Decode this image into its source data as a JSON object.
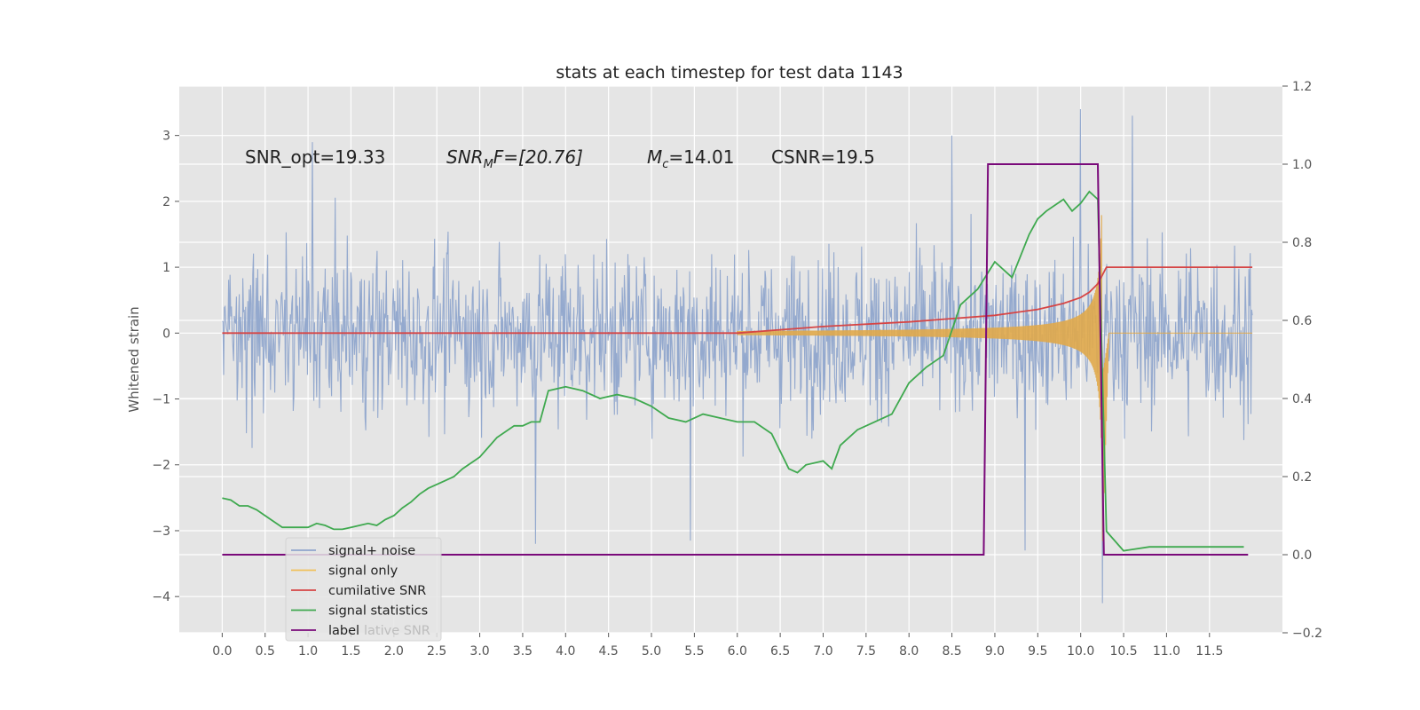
{
  "chart_data": {
    "type": "line",
    "title": "stats at each timestep for test data 1143",
    "ylabel": "Whitened strain",
    "xlabel": "",
    "xlim": [
      -0.5,
      12.35
    ],
    "ylim": [
      -4.55,
      3.75
    ],
    "y2lim": [
      -0.2,
      1.2
    ],
    "grid": true,
    "legend_placement": "lower-left",
    "x_ticks": [
      "0.0",
      "0.5",
      "1.0",
      "1.5",
      "2.0",
      "2.5",
      "3.0",
      "3.5",
      "4.0",
      "4.5",
      "5.0",
      "5.5",
      "6.0",
      "6.5",
      "7.0",
      "7.5",
      "8.0",
      "8.5",
      "9.0",
      "9.5",
      "10.0",
      "10.5",
      "11.0",
      "11.5"
    ],
    "y_ticks": [
      "3",
      "2",
      "1",
      "0",
      "−1",
      "−2",
      "−3",
      "−4"
    ],
    "y2_ticks": [
      "1.2",
      "1.0",
      "0.8",
      "0.6",
      "0.4",
      "0.2",
      "0.0",
      "−0.2"
    ],
    "annotations": {
      "snr_opt": "SNR_opt=19.33",
      "snr_mf_main": "SNR",
      "snr_mf_sub": "M",
      "snr_mf_rest": "F=[20.76]",
      "mc_main": "M",
      "mc_sub": "c",
      "mc_rest": "=14.01",
      "csnr": "CSNR=19.5"
    },
    "legend": [
      {
        "label": "signal+ noise",
        "color": "#8fa5cc"
      },
      {
        "label": "signal only",
        "color": "#f0c05a"
      },
      {
        "label": "cumilative SNR",
        "color": "#d64545"
      },
      {
        "label": "signal statistics",
        "color": "#3fa94f"
      },
      {
        "label": "label",
        "color": "#7a0a7a"
      }
    ],
    "legend_ghost_text": "lative SNR",
    "series": [
      {
        "name": "signal+ noise",
        "axis": "left",
        "color": "#8fa5cc",
        "x_range": [
          0.0,
          12.0
        ],
        "envelope": {
          "upper": 2.2,
          "lower": -2.2,
          "peak_max": 3.4,
          "peak_min": -4.1
        }
      },
      {
        "name": "signal only",
        "axis": "left",
        "color": "#e0a94a",
        "chirp": {
          "start": 6.0,
          "merger": 10.25,
          "end": 12.0,
          "peak_amplitude": 1.5
        }
      },
      {
        "name": "cumilative SNR",
        "axis": "left",
        "color": "#d64545",
        "x": [
          0.0,
          6.0,
          7.0,
          8.0,
          8.5,
          9.0,
          9.5,
          9.8,
          10.0,
          10.1,
          10.2,
          10.3,
          12.0
        ],
        "values": [
          0.0,
          0.0,
          0.1,
          0.17,
          0.22,
          0.27,
          0.36,
          0.45,
          0.54,
          0.62,
          0.75,
          1.0,
          1.0
        ]
      },
      {
        "name": "signal statistics",
        "axis": "right",
        "color": "#3fa94f",
        "x": [
          0.0,
          0.1,
          0.2,
          0.3,
          0.4,
          0.5,
          0.6,
          0.7,
          0.8,
          1.0,
          1.1,
          1.2,
          1.3,
          1.4,
          1.5,
          1.6,
          1.7,
          1.8,
          1.9,
          2.0,
          2.1,
          2.2,
          2.3,
          2.4,
          2.5,
          2.6,
          2.7,
          2.8,
          3.0,
          3.2,
          3.4,
          3.5,
          3.6,
          3.7,
          3.8,
          4.0,
          4.2,
          4.4,
          4.6,
          4.8,
          5.0,
          5.2,
          5.4,
          5.6,
          5.8,
          6.0,
          6.2,
          6.4,
          6.6,
          6.7,
          6.8,
          7.0,
          7.1,
          7.2,
          7.4,
          7.6,
          7.8,
          8.0,
          8.2,
          8.4,
          8.6,
          8.8,
          9.0,
          9.2,
          9.4,
          9.5,
          9.6,
          9.8,
          9.9,
          10.0,
          10.1,
          10.2,
          10.3,
          10.5,
          10.8,
          11.0,
          11.5,
          11.9
        ],
        "values": [
          0.145,
          0.14,
          0.125,
          0.125,
          0.115,
          0.1,
          0.085,
          0.07,
          0.07,
          0.07,
          0.08,
          0.075,
          0.065,
          0.065,
          0.07,
          0.075,
          0.08,
          0.075,
          0.09,
          0.1,
          0.12,
          0.135,
          0.155,
          0.17,
          0.18,
          0.19,
          0.2,
          0.22,
          0.25,
          0.3,
          0.33,
          0.33,
          0.34,
          0.34,
          0.42,
          0.43,
          0.42,
          0.4,
          0.41,
          0.4,
          0.38,
          0.35,
          0.34,
          0.36,
          0.35,
          0.34,
          0.34,
          0.31,
          0.22,
          0.21,
          0.23,
          0.24,
          0.22,
          0.28,
          0.32,
          0.34,
          0.36,
          0.44,
          0.48,
          0.51,
          0.64,
          0.68,
          0.75,
          0.71,
          0.82,
          0.86,
          0.88,
          0.91,
          0.88,
          0.9,
          0.93,
          0.91,
          0.06,
          0.01,
          0.02,
          0.02,
          0.02,
          0.02
        ]
      },
      {
        "name": "label",
        "axis": "right",
        "color": "#7a0a7a",
        "x": [
          0.0,
          8.87,
          8.92,
          10.2,
          10.27,
          11.95
        ],
        "values": [
          0.0,
          0.0,
          1.0,
          1.0,
          0.0,
          0.0
        ]
      }
    ]
  }
}
